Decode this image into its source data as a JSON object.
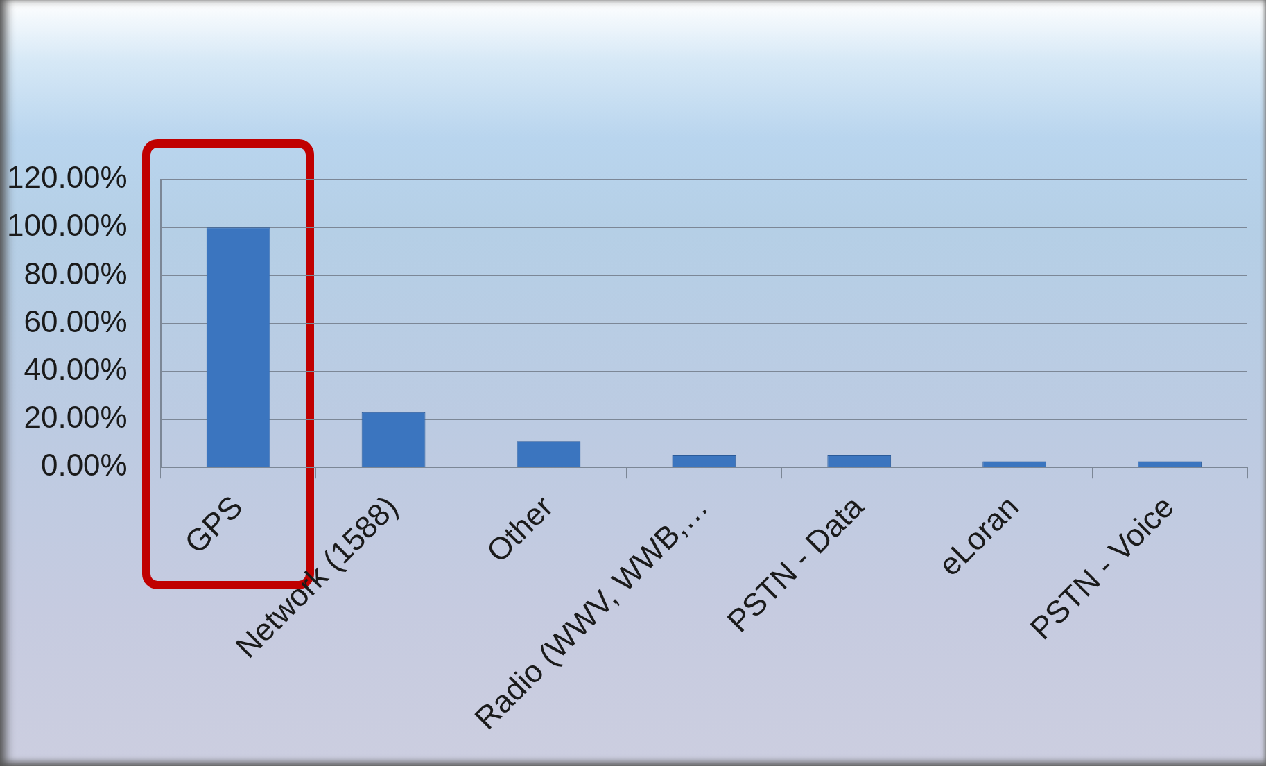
{
  "chart_data": {
    "type": "bar",
    "categories": [
      "GPS",
      "Network (1588)",
      "Other",
      "Radio (WWV, WWB,…",
      "PSTN - Data",
      "eLoran",
      "PSTN - Voice"
    ],
    "values": [
      100,
      23,
      11,
      5,
      5,
      2.5,
      2.5
    ],
    "color": "#3b75bf",
    "ylim": [
      0,
      120
    ],
    "yticks": [
      {
        "value": 0,
        "label": "0.00%"
      },
      {
        "value": 20,
        "label": "20.00%"
      },
      {
        "value": 40,
        "label": "40.00%"
      },
      {
        "value": 60,
        "label": "60.00%"
      },
      {
        "value": 80,
        "label": "80.00%"
      },
      {
        "value": 100,
        "label": "100.00%"
      },
      {
        "value": 120,
        "label": "120.00%"
      }
    ],
    "grid": "y"
  }
}
